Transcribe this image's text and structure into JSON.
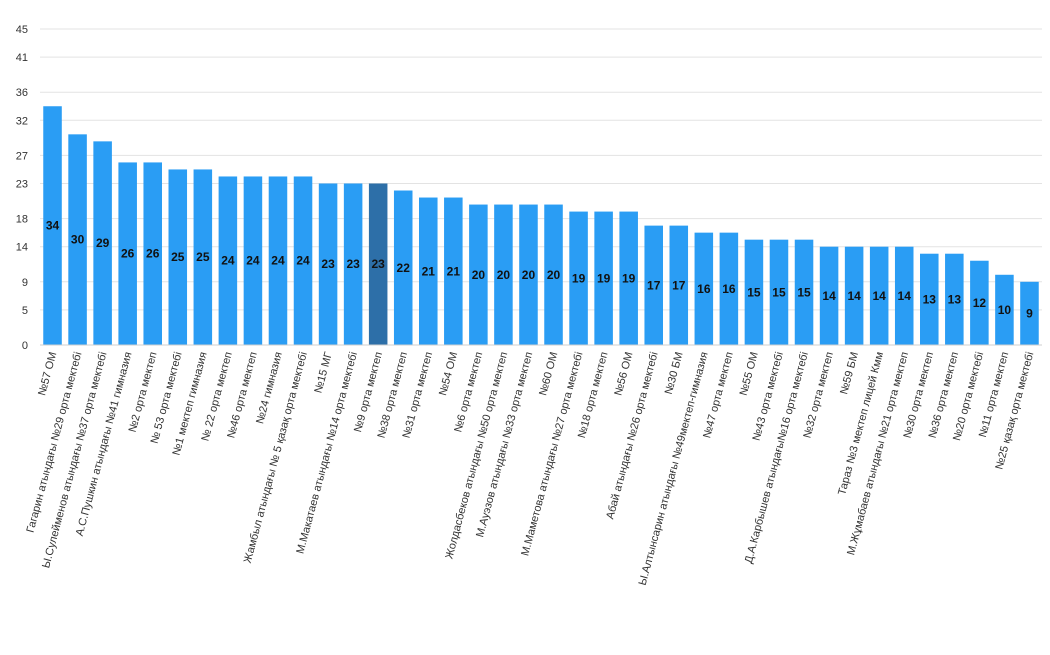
{
  "colors": {
    "bar": "#2a9df4",
    "bar_highlight": "#2d6fa8",
    "grid": "#e3e3e3",
    "background": "#ffffff"
  },
  "chart_data": {
    "type": "bar",
    "title": "",
    "xlabel": "",
    "ylabel": "",
    "ylim": [
      0,
      45
    ],
    "yticks": [
      0,
      5,
      9,
      14,
      18,
      23,
      27,
      32,
      36,
      41,
      45
    ],
    "grid": true,
    "legend": "none",
    "highlight_category": "№9 орта мектеп",
    "categories": [
      "№57 ОМ",
      "Гагарин атындағы №29 орта мектебі",
      "Ы.Сулейменов атындағы №37 орта мектебі",
      "А.С.Пушкин атындағы №41 гимназия",
      "№2 орта мектеп",
      "№ 53 орта мектебі",
      "№1 мектеп гимназия",
      "№ 22 орта мектеп",
      "№46 орта мектеп",
      "№24 гимназия",
      "Жамбыл атындағы № 5 қазақ орта мектебі",
      "№15 МГ",
      "М.Макатаев атындағы №14 орта мектебі",
      "№9 орта мектеп",
      "№38 орта мектеп",
      "№31 орта мектеп",
      "№54 ОМ",
      "№6 орта мектеп",
      "Жолдасбеков атындағы №50 орта мектеп",
      "М.Ауэзов атындағы №33 орта мектеп",
      "№60 ОМ",
      "М.Маметова атындағы №27 орта мектебі",
      "№18 орта мектеп",
      "№56 ОМ",
      "Абай атындағы №26 орта мектебі",
      "№30 БМ",
      "Ы.Алтынсарин атындағы №49мектеп-гимназия",
      "№47 орта мектеп",
      "№55 ОМ",
      "№43 орта мектебі",
      "Д.А.Карбышев атындағы№16 орта мектебі",
      "№32 орта мектеп",
      "№59 БМ",
      "Тараз №3 мектеп лицей Кмм",
      "М.Жұмабаев атындағы №21 орта мектеп",
      "№30 орта мектеп",
      "№36 орта мектеп",
      "№20 орта мектебі",
      "№11 орта мектеп",
      "№25 қазақ орта мектебі"
    ],
    "values": [
      34,
      30,
      29,
      26,
      26,
      25,
      25,
      24,
      24,
      24,
      24,
      23,
      23,
      23,
      22,
      21,
      21,
      20,
      20,
      20,
      20,
      19,
      19,
      19,
      17,
      17,
      16,
      16,
      15,
      15,
      15,
      14,
      14,
      14,
      14,
      13,
      13,
      12,
      10,
      9
    ]
  }
}
